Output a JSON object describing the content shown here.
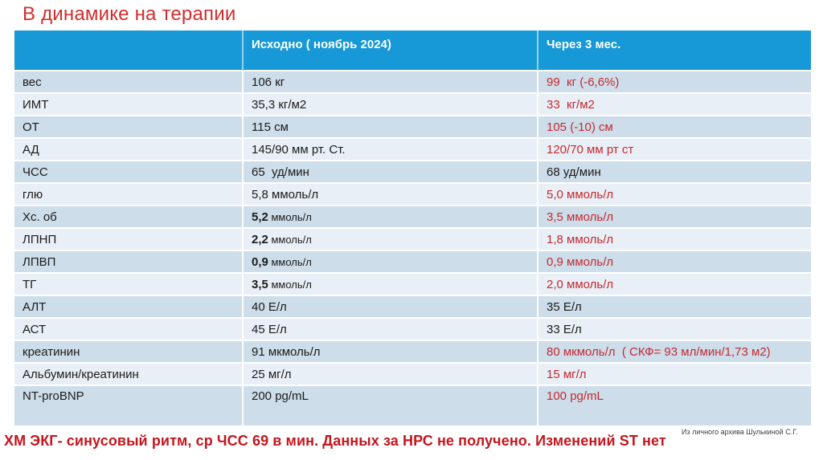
{
  "slide": {
    "title": "В динамике на терапии",
    "footer_note": "ХМ ЭКГ- синусовый ритм, ср ЧСС 69 в мин. Данных за НРС не получено. Изменений ST нет",
    "attribution": "Из личного архива Шулькиной С.Г."
  },
  "colors": {
    "header_bg": "#1699d6",
    "row_dark": "#cdddea",
    "row_light": "#e9eff6",
    "red_text": "#c42a30",
    "title_red": "#d32c2c",
    "footer_red": "#c4161e",
    "body_text": "#1b1b1b",
    "attribution_gray": "#404040"
  },
  "table": {
    "header_empty": "",
    "header_baseline": "Исходно ( ноябрь 2024)",
    "header_followup": "Через 3 мес.",
    "rows": [
      {
        "label": "вес",
        "baseline": [
          {
            "t": "106 кг"
          }
        ],
        "after": [
          {
            "t": "99  кг (-6,6%)"
          }
        ],
        "after_red": true
      },
      {
        "label": "ИМТ",
        "baseline": [
          {
            "t": "35,3 кг/м2"
          }
        ],
        "after": [
          {
            "t": "33  кг/м2"
          }
        ],
        "after_red": true
      },
      {
        "label": "ОТ",
        "baseline": [
          {
            "t": "115 см"
          }
        ],
        "after": [
          {
            "t": "105 (-10) см"
          }
        ],
        "after_red": true
      },
      {
        "label": "АД",
        "baseline": [
          {
            "t": "145/90 мм рт. Ст."
          }
        ],
        "after": [
          {
            "t": "120/70 мм рт ст"
          }
        ],
        "after_red": true
      },
      {
        "label": "ЧСС",
        "baseline": [
          {
            "t": "65  уд/мин"
          }
        ],
        "after": [
          {
            "t": "68 уд/мин"
          }
        ],
        "after_red": false
      },
      {
        "label": "глю",
        "baseline": [
          {
            "t": "5,8 ммоль/л"
          }
        ],
        "after": [
          {
            "t": "5,0 ммоль/л"
          }
        ],
        "after_red": true
      },
      {
        "label": "Хс. об",
        "baseline": [
          {
            "t": "5,2",
            "b": true
          },
          {
            "t": " ммоль/л",
            "s": true
          }
        ],
        "after": [
          {
            "t": "3,5 ммоль/л"
          }
        ],
        "after_red": true
      },
      {
        "label": "ЛПНП",
        "baseline": [
          {
            "t": "2,2",
            "b": true
          },
          {
            "t": " ммоль/л",
            "s": true
          }
        ],
        "after": [
          {
            "t": "1,8 ммоль/л"
          }
        ],
        "after_red": true
      },
      {
        "label": "ЛПВП",
        "baseline": [
          {
            "t": "0,9",
            "b": true
          },
          {
            "t": " ммоль/л",
            "s": true
          }
        ],
        "after": [
          {
            "t": "0,9 ммоль/л"
          }
        ],
        "after_red": true
      },
      {
        "label": "ТГ",
        "baseline": [
          {
            "t": "3,5",
            "b": true
          },
          {
            "t": " ммоль/л",
            "s": true
          }
        ],
        "after": [
          {
            "t": "2,0 ммоль/л"
          }
        ],
        "after_red": true
      },
      {
        "label": "АЛТ",
        "baseline": [
          {
            "t": "40 Е/л"
          }
        ],
        "after": [
          {
            "t": "35 Е/л"
          }
        ],
        "after_red": false
      },
      {
        "label": "АСТ",
        "baseline": [
          {
            "t": "45 Е/л"
          }
        ],
        "after": [
          {
            "t": "33 Е/л"
          }
        ],
        "after_red": false
      },
      {
        "label": "креатинин",
        "baseline": [
          {
            "t": "91 мкмоль/л"
          }
        ],
        "after": [
          {
            "t": "80 мкмоль/л  ( СКФ= 93 мл/мин/1,73 м2)"
          }
        ],
        "after_red": true
      },
      {
        "label": "Альбумин/креатинин",
        "baseline": [
          {
            "t": "25 мг/л"
          }
        ],
        "after": [
          {
            "t": "15 мг/л"
          }
        ],
        "after_red": true
      },
      {
        "label": "NT-proBNP",
        "baseline": [
          {
            "t": "200 pg/mL"
          }
        ],
        "after": [
          {
            "t": "100 pg/mL"
          }
        ],
        "after_red": true,
        "tall": true
      }
    ]
  }
}
